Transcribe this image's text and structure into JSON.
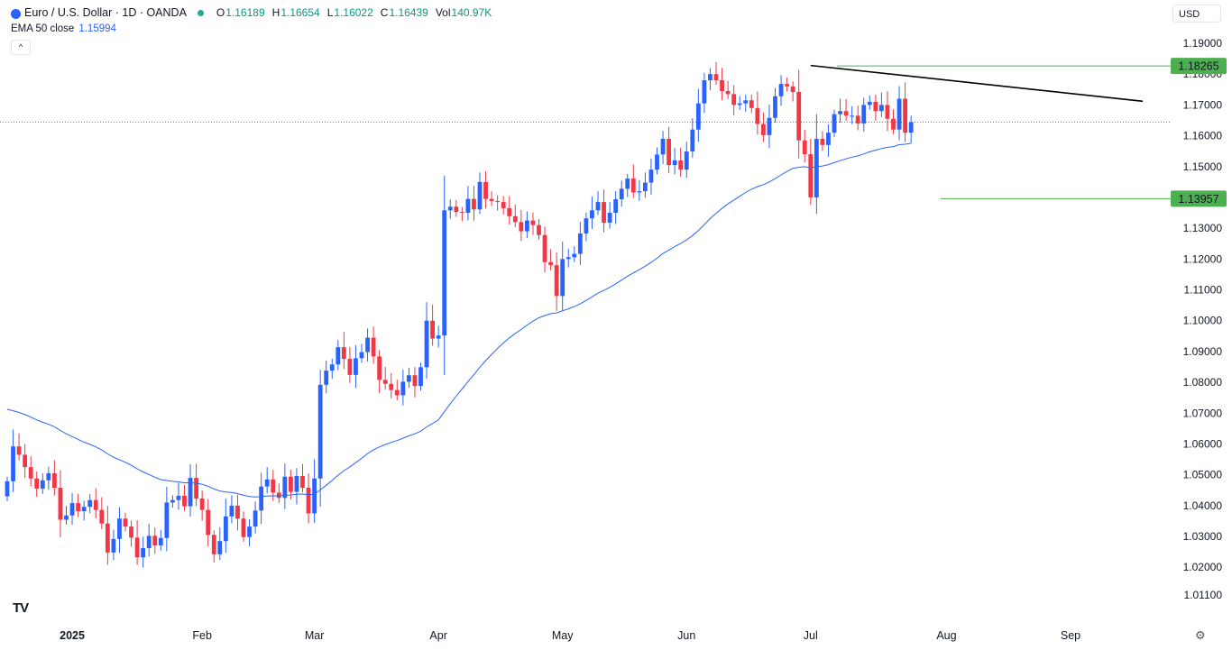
{
  "header": {
    "symbol_title": "Euro / U.S. Dollar · 1D · OANDA",
    "ohlc": [
      {
        "k": "O",
        "v": "1.16189"
      },
      {
        "k": "H",
        "v": "1.16654"
      },
      {
        "k": "L",
        "v": "1.16022"
      },
      {
        "k": "C",
        "v": "1.16439"
      },
      {
        "k": "Vol",
        "v": "140.97K"
      }
    ],
    "ema_label": "EMA 50 close",
    "ema_value": "1.15994",
    "collapse_glyph": "^",
    "currency": "USD",
    "logo": "TV",
    "settings_icon": "gear-icon"
  },
  "colors": {
    "up": "#2962ff",
    "down": "#f23645",
    "ema": "#2962ff",
    "level": "#4caf50",
    "trendline": "#000000",
    "grid_text": "#131722"
  },
  "chart_data": {
    "type": "candlestick",
    "title": "Euro / U.S. Dollar · 1D · OANDA",
    "y_range": [
      1.005,
      1.195
    ],
    "y_ticks": [
      "1.19000",
      "1.18000",
      "1.17000",
      "1.16000",
      "1.15000",
      "1.14000",
      "1.13000",
      "1.12000",
      "1.11000",
      "1.10000",
      "1.09000",
      "1.08000",
      "1.07000",
      "1.06000",
      "1.05000",
      "1.04000",
      "1.03000",
      "1.02000",
      "1.01100"
    ],
    "x_labels": [
      {
        "label": "2025",
        "bar": 11,
        "bold": true
      },
      {
        "label": "Feb",
        "bar": 33
      },
      {
        "label": "Mar",
        "bar": 52
      },
      {
        "label": "Apr",
        "bar": 73
      },
      {
        "label": "May",
        "bar": 94
      },
      {
        "label": "Jun",
        "bar": 115
      },
      {
        "label": "Jul",
        "bar": 136
      },
      {
        "label": "Aug",
        "bar": 159
      },
      {
        "label": "Sep",
        "bar": 180
      }
    ],
    "price_levels": [
      {
        "label": "1.18265",
        "value": 1.18265
      },
      {
        "label": "1.13957",
        "value": 1.13957
      }
    ],
    "current_price": 1.16439,
    "trendline": {
      "from": {
        "bar": 136,
        "price": 1.1828
      },
      "to": {
        "bar": 182,
        "price": 1.1712
      }
    },
    "closes": [
      1.0479,
      1.0592,
      1.0565,
      1.0525,
      1.0488,
      1.0455,
      1.0482,
      1.0505,
      1.0458,
      1.0354,
      1.0368,
      1.0408,
      1.0382,
      1.0396,
      1.0418,
      1.0386,
      1.0342,
      1.0248,
      1.0292,
      1.0358,
      1.0332,
      1.0296,
      1.0232,
      1.0262,
      1.0302,
      1.0271,
      1.0295,
      1.041,
      1.0418,
      1.0432,
      1.0398,
      1.049,
      1.0423,
      1.0386,
      1.0305,
      1.0242,
      1.0285,
      1.0365,
      1.04,
      1.0358,
      1.0298,
      1.0332,
      1.0384,
      1.0462,
      1.0485,
      1.0442,
      1.0425,
      1.0494,
      1.0445,
      1.0496,
      1.0458,
      1.0375,
      1.0488,
      1.0792,
      1.0838,
      1.0858,
      1.0914,
      1.0876,
      1.0824,
      1.0878,
      1.0898,
      1.0945,
      1.0884,
      1.0808,
      1.0795,
      1.0775,
      1.0758,
      1.0802,
      1.0823,
      1.0788,
      1.0849,
      1.1,
      1.0942,
      1.0952,
      1.1358,
      1.137,
      1.1353,
      1.135,
      1.1395,
      1.1361,
      1.145,
      1.1395,
      1.1388,
      1.1385,
      1.1365,
      1.1339,
      1.132,
      1.129,
      1.1325,
      1.131,
      1.1278,
      1.119,
      1.118,
      1.108,
      1.12,
      1.1206,
      1.1217,
      1.1283,
      1.1332,
      1.1358,
      1.1385,
      1.1318,
      1.135,
      1.1394,
      1.1428,
      1.1461,
      1.1416,
      1.142,
      1.1448,
      1.149,
      1.1539,
      1.159,
      1.1505,
      1.152,
      1.149,
      1.1549,
      1.162,
      1.1705,
      1.178,
      1.18,
      1.178,
      1.1745,
      1.1735,
      1.17,
      1.1705,
      1.1715,
      1.169,
      1.1638,
      1.1602,
      1.1658,
      1.1728,
      1.1768,
      1.176,
      1.1742,
      1.1585,
      1.154,
      1.14,
      1.159,
      1.157,
      1.161,
      1.167,
      1.168,
      1.1665,
      1.1665,
      1.164,
      1.17,
      1.171,
      1.168,
      1.17,
      1.1655,
      1.162,
      1.172,
      1.161,
      1.1644
    ],
    "series": [
      {
        "name": "EURUSD",
        "type": "candlestick"
      },
      {
        "name": "EMA 50 close",
        "type": "line",
        "last": 1.15994
      }
    ]
  }
}
